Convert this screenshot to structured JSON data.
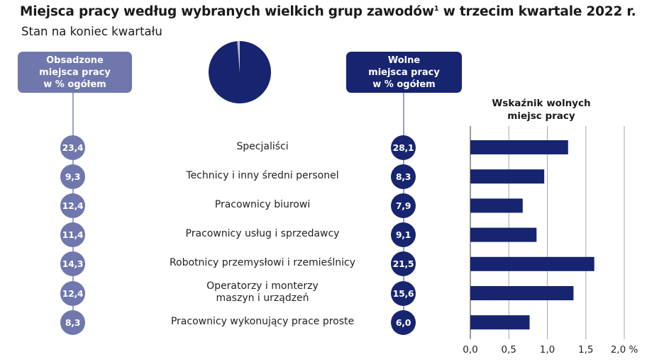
{
  "title_main": "Miejsca pracy według wybranych wielkich grup zawodów",
  "title_sup": "1",
  "title_rest": " w trzecim kwartale 2022 r.",
  "subtitle": "Stan na koniec kwartału",
  "header_left": [
    "Obsadzone",
    "miejsca pracy",
    "w % ogółem"
  ],
  "header_mid": [
    "Wolne",
    "miejsca pracy",
    "w % ogółem"
  ],
  "chart_header": [
    "Wskaźnik wolnych",
    "miejsc pracy"
  ],
  "colors": {
    "light": "#6f77ad",
    "dark": "#17246f",
    "grid": "#9a9a9a"
  },
  "rows": [
    {
      "label": [
        "Specjaliści"
      ],
      "occupied": "23,4",
      "vacant": "28,1"
    },
    {
      "label": [
        "Technicy i inny średni personel"
      ],
      "occupied": "9,3",
      "vacant": "8,3"
    },
    {
      "label": [
        "Pracownicy biurowi"
      ],
      "occupied": "12,4",
      "vacant": "7,9"
    },
    {
      "label": [
        "Pracownicy usług i sprzedawcy"
      ],
      "occupied": "11,4",
      "vacant": "9,1"
    },
    {
      "label": [
        "Robotnicy przemysłowi i rzemieślnicy"
      ],
      "occupied": "14,3",
      "vacant": "21,5"
    },
    {
      "label": [
        "Operatorzy i monterzy",
        "maszyn i urządzeń"
      ],
      "occupied": "12,4",
      "vacant": "15,6"
    },
    {
      "label": [
        "Pracownicy wykonujący prace proste"
      ],
      "occupied": "8,3",
      "vacant": "6,0"
    }
  ],
  "chart_data": {
    "type": "bar",
    "orientation": "horizontal",
    "title": "Wskaźnik wolnych miejsc pracy",
    "categories": [
      "Specjaliści",
      "Technicy i inny średni personel",
      "Pracownicy biurowi",
      "Pracownicy usług i sprzedawcy",
      "Robotnicy przemysłowi i rzemieślnicy",
      "Operatorzy i monterzy maszyn i urządzeń",
      "Pracownicy wykonujący prace proste"
    ],
    "values": [
      1.27,
      0.96,
      0.68,
      0.86,
      1.61,
      1.34,
      0.77
    ],
    "xlim": [
      0,
      2.0
    ],
    "ticks": [
      0,
      0.5,
      1.0,
      1.5,
      2.0
    ],
    "tick_labels": [
      "0,0",
      "0,5",
      "1,0",
      "1,5",
      "2,0 %"
    ],
    "grid": true,
    "pie": {
      "values": [
        98.7,
        1.3
      ]
    }
  }
}
